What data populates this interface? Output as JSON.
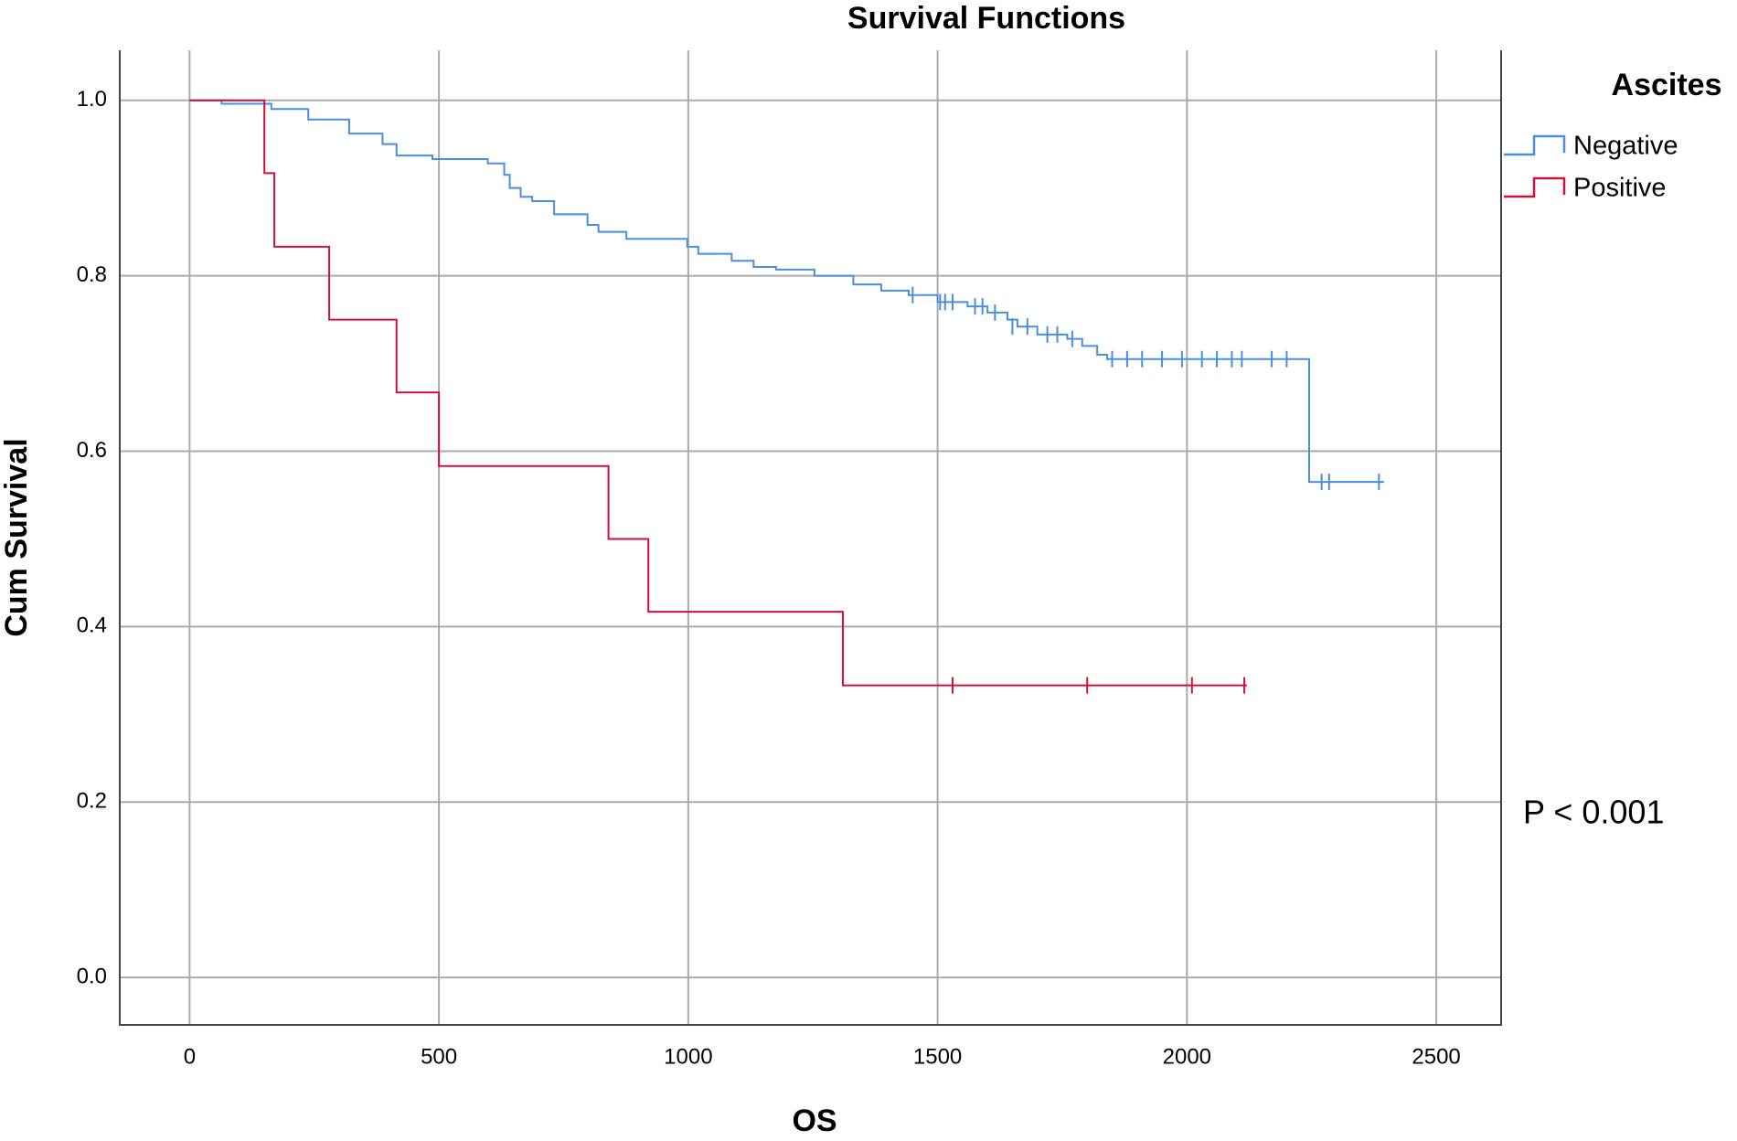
{
  "chart_data": {
    "type": "line",
    "step": true,
    "title": "Survival Functions",
    "x_label": "OS",
    "y_label": "Cum Survival",
    "legend_title": "Ascites",
    "legend_position": "right",
    "annotation": "P < 0.001",
    "grid": true,
    "xlim": [
      -140,
      2630
    ],
    "ylim": [
      -0.054,
      1.057
    ],
    "xticks": [
      0,
      500,
      1000,
      1500,
      2000,
      2500
    ],
    "yticks": [
      {
        "value": 0,
        "label": "0.0"
      },
      0.2,
      0.4,
      0.6,
      0.8,
      {
        "value": 1,
        "label": "1.0"
      }
    ],
    "series": [
      {
        "name": "Negative",
        "color": "#4a8fdb",
        "x": [
          0,
          64,
          164,
          238,
          320,
          387,
          415,
          487,
          598,
          631,
          642,
          664,
          687,
          731,
          798,
          820,
          876,
          998,
          1020,
          1087,
          1131,
          1176,
          1253,
          1331,
          1387,
          1442,
          1500,
          1560,
          1600,
          1640,
          1660,
          1700,
          1760,
          1790,
          1820,
          1840,
          2245,
          2395
        ],
        "values": [
          1.0,
          0.996,
          0.99,
          0.978,
          0.962,
          0.95,
          0.937,
          0.933,
          0.928,
          0.915,
          0.9,
          0.89,
          0.885,
          0.87,
          0.858,
          0.85,
          0.842,
          0.833,
          0.825,
          0.817,
          0.81,
          0.807,
          0.8,
          0.79,
          0.783,
          0.778,
          0.77,
          0.765,
          0.758,
          0.75,
          0.742,
          0.733,
          0.728,
          0.72,
          0.71,
          0.705,
          0.565,
          0.565
        ],
        "censored": {
          "x": [
            1450,
            1505,
            1515,
            1530,
            1575,
            1590,
            1615,
            1650,
            1680,
            1720,
            1740,
            1770,
            1850,
            1880,
            1910,
            1950,
            1990,
            2030,
            2060,
            2090,
            2110,
            2170,
            2200,
            2270,
            2285,
            2385
          ],
          "values": [
            0.778,
            0.77,
            0.77,
            0.77,
            0.765,
            0.765,
            0.758,
            0.742,
            0.742,
            0.733,
            0.733,
            0.728,
            0.705,
            0.705,
            0.705,
            0.705,
            0.705,
            0.705,
            0.705,
            0.705,
            0.705,
            0.705,
            0.705,
            0.565,
            0.565,
            0.565
          ]
        }
      },
      {
        "name": "Positive",
        "color": "#d0103a",
        "x": [
          0,
          150,
          170,
          280,
          415,
          500,
          840,
          920,
          1310,
          2120
        ],
        "values": [
          1.0,
          0.917,
          0.833,
          0.75,
          0.667,
          0.583,
          0.5,
          0.417,
          0.333,
          0.333
        ],
        "censored": {
          "x": [
            1530,
            1800,
            2010,
            2115
          ],
          "values": [
            0.333,
            0.333,
            0.333,
            0.333
          ]
        }
      }
    ]
  }
}
